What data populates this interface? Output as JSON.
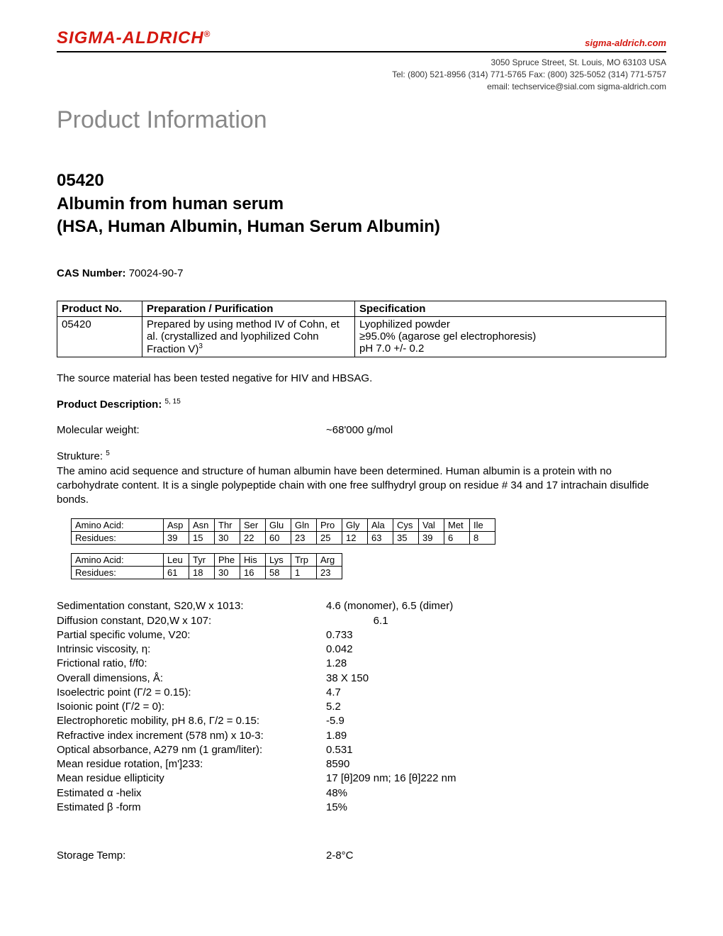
{
  "header": {
    "logo_text": "SIGMA-ALDRICH",
    "logo_color": "#d4170f",
    "site_link": "sigma-aldrich.com",
    "site_link_color": "#d4170f",
    "address_line1": "3050 Spruce Street, St. Louis, MO 63103 USA",
    "address_line2": "Tel: (800) 521-8956  (314) 771-5765   Fax: (800) 325-5052  (314) 771-5757",
    "address_line3": "email: techservice@sial.com  sigma-aldrich.com"
  },
  "page_title": "Product Information",
  "product": {
    "code": "05420",
    "name": "Albumin from human serum",
    "synonyms": "(HSA, Human Albumin, Human Serum Albumin)"
  },
  "cas": {
    "label": "CAS Number:",
    "value": "70024-90-7"
  },
  "product_table": {
    "headers": [
      "Product No.",
      "Preparation / Purification",
      "Specification"
    ],
    "row": {
      "no": "05420",
      "prep": "Prepared by using method IV of Cohn, et al. (crystallized and lyophilized Cohn Fraction V)",
      "prep_sup": "3",
      "spec_lines": [
        "Lyophilized powder",
        "≥95.0% (agarose gel electrophoresis)",
        "pH 7.0 +/- 0.2"
      ]
    }
  },
  "source_note": "The source material has been tested negative for HIV and HBSAG.",
  "description": {
    "label": "Product Description:",
    "sup": "5, 15",
    "mw_label": "Molecular weight:",
    "mw_value": "~68'000 g/mol",
    "struct_label": "Strukture:",
    "struct_sup": "5",
    "struct_text": "The amino acid sequence and structure of human albumin have been determined. Human albumin is a protein with no carbohydrate content. It is a single polypeptide chain with one free sulfhydryl group on residue # 34 and 17 intrachain disulfide bonds."
  },
  "aa_table1": {
    "row_aa_label": "Amino Acid:",
    "row_res_label": "Residues:",
    "aa": [
      "Asp",
      "Asn",
      "Thr",
      "Ser",
      "Glu",
      "Gln",
      "Pro",
      "Gly",
      "Ala",
      "Cys",
      "Val",
      "Met",
      "Ile"
    ],
    "res": [
      "39",
      "15",
      "30",
      "22",
      "60",
      "23",
      "25",
      "12",
      "63",
      "35",
      "39",
      "6",
      "8"
    ]
  },
  "aa_table2": {
    "row_aa_label": "Amino Acid:",
    "row_res_label": "Residues:",
    "aa": [
      "Leu",
      "Tyr",
      "Phe",
      "His",
      "Lys",
      "Trp",
      "Arg"
    ],
    "res": [
      "61",
      "18",
      "30",
      "16",
      "58",
      "1",
      "23"
    ]
  },
  "properties": [
    {
      "label": "Sedimentation constant, S20,W x 1013:",
      "value": "4.6 (monomer), 6.5 (dimer)"
    },
    {
      "label": "Diffusion constant, D20,W x 107:",
      "value": "                6.1"
    },
    {
      "label": "Partial specific volume, V20:",
      "value": "0.733"
    },
    {
      "label": "Intrinsic viscosity, η:",
      "value": "0.042"
    },
    {
      "label": "Frictional ratio, f/f0:",
      "value": "1.28"
    },
    {
      "label": "Overall dimensions, Å:",
      "value": "38 X 150"
    },
    {
      "label": "Isoelectric point (Γ/2 = 0.15):",
      "value": "4.7"
    },
    {
      "label": "Isoionic point (Γ/2 = 0):",
      "value": "5.2"
    },
    {
      "label": "Electrophoretic mobility, pH 8.6, Γ/2 = 0.15:",
      "value": "-5.9"
    },
    {
      "label": "Refractive index increment (578 nm) x 10-3:",
      "value": "1.89"
    },
    {
      "label": "Optical absorbance, A279 nm (1 gram/liter):",
      "value": "0.531"
    },
    {
      "label": "Mean residue rotation, [m']233:",
      "value": "8590"
    },
    {
      "label": "Mean residue ellipticity",
      "value": "17 [θ]209 nm; 16 [θ]222 nm"
    },
    {
      "label": "Estimated α -helix",
      "value": "48%"
    },
    {
      "label": "Estimated β -form",
      "value": "15%"
    }
  ],
  "storage": {
    "label": "Storage Temp:",
    "value": "2-8°C"
  }
}
